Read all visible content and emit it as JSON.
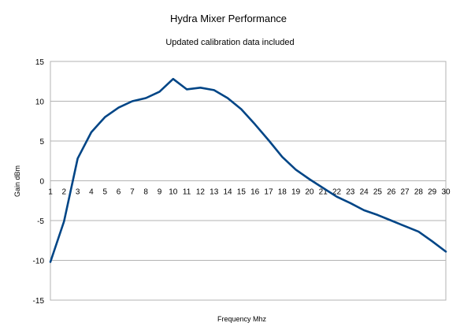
{
  "chart_data": {
    "type": "line",
    "title": "Hydra Mixer Performance",
    "subtitle": "Updated calibration data included",
    "xlabel": "Frequency Mhz",
    "ylabel": "Gain dBm",
    "ylim": [
      -15,
      15
    ],
    "y_ticks": [
      "15",
      "10",
      "5",
      "0",
      "-5",
      "-10",
      "-15"
    ],
    "y_tick_values": [
      15,
      10,
      5,
      0,
      -5,
      -10,
      -15
    ],
    "categories": [
      "1",
      "2",
      "3",
      "4",
      "5",
      "6",
      "7",
      "8",
      "9",
      "10",
      "11",
      "12",
      "13",
      "14",
      "15",
      "16",
      "17",
      "18",
      "19",
      "20",
      "21",
      "22",
      "23",
      "24",
      "25",
      "26",
      "27",
      "28",
      "29",
      "30"
    ],
    "grid": true,
    "legend": "none",
    "series": [
      {
        "color": "#004586",
        "values": [
          -10.2,
          -5.1,
          2.8,
          6.1,
          8.0,
          9.2,
          10.0,
          10.4,
          11.2,
          12.8,
          11.5,
          11.7,
          11.4,
          10.4,
          9.0,
          7.1,
          5.1,
          3.0,
          1.4,
          0.2,
          -0.9,
          -2.0,
          -2.8,
          -3.7,
          -4.3,
          -5.0,
          -5.7,
          -6.4,
          -7.6,
          -8.9
        ]
      }
    ]
  }
}
